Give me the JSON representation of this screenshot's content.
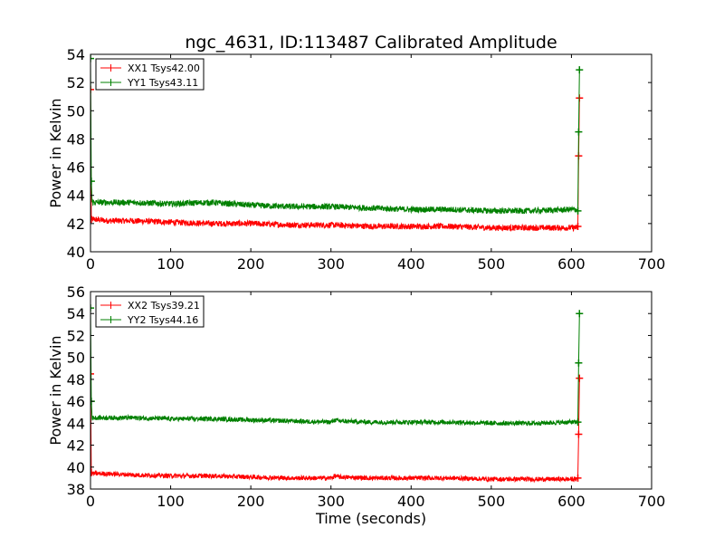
{
  "title": "ngc_4631, ID:113487 Calibrated Amplitude",
  "chart_data": [
    {
      "type": "line",
      "ylabel": "Power in Kelvin",
      "xlabel": "",
      "xlim": [
        0,
        700
      ],
      "ylim": [
        40,
        54
      ],
      "xticks": [
        0,
        100,
        200,
        300,
        400,
        500,
        600,
        700
      ],
      "yticks": [
        40,
        42,
        44,
        46,
        48,
        50,
        52,
        54
      ],
      "grid": false,
      "legend_position": "upper-left",
      "series": [
        {
          "name": "XX1 Tsys42.00",
          "color": "#ff0000",
          "x": [
            0,
            1,
            2,
            5,
            20,
            50,
            100,
            150,
            200,
            250,
            300,
            350,
            400,
            450,
            500,
            550,
            600,
            606,
            608,
            609,
            610
          ],
          "y": [
            51.5,
            42.3,
            42.3,
            42.3,
            42.2,
            42.2,
            42.1,
            42.0,
            42.0,
            41.9,
            41.9,
            41.8,
            41.8,
            41.8,
            41.7,
            41.7,
            41.7,
            41.7,
            41.8,
            46.8,
            50.9
          ]
        },
        {
          "name": "YY1 Tsys43.11",
          "color": "#008000",
          "x": [
            0,
            1,
            2,
            5,
            20,
            50,
            100,
            150,
            200,
            250,
            300,
            350,
            400,
            450,
            500,
            550,
            600,
            606,
            608,
            609,
            610
          ],
          "y": [
            53.7,
            45.0,
            43.5,
            43.5,
            43.5,
            43.5,
            43.4,
            43.5,
            43.3,
            43.2,
            43.2,
            43.1,
            43.0,
            43.0,
            42.9,
            42.9,
            43.0,
            43.0,
            42.9,
            48.5,
            52.9
          ]
        }
      ]
    },
    {
      "type": "line",
      "ylabel": "Power in Kelvin",
      "xlabel": "Time (seconds)",
      "xlim": [
        0,
        700
      ],
      "ylim": [
        38,
        56
      ],
      "xticks": [
        0,
        100,
        200,
        300,
        400,
        500,
        600,
        700
      ],
      "yticks": [
        38,
        40,
        42,
        44,
        46,
        48,
        50,
        52,
        54,
        56
      ],
      "grid": false,
      "legend_position": "upper-left",
      "series": [
        {
          "name": "XX2 Tsys39.21",
          "color": "#ff0000",
          "x": [
            0,
            1,
            2,
            5,
            20,
            50,
            100,
            150,
            200,
            250,
            300,
            305,
            310,
            350,
            400,
            450,
            500,
            550,
            600,
            606,
            608,
            609,
            610
          ],
          "y": [
            48.5,
            39.5,
            39.4,
            39.4,
            39.4,
            39.3,
            39.2,
            39.2,
            39.1,
            39.0,
            39.0,
            39.2,
            39.1,
            39.0,
            39.0,
            39.0,
            38.9,
            38.9,
            38.9,
            38.9,
            39.0,
            43.0,
            48.1
          ]
        },
        {
          "name": "YY2 Tsys44.16",
          "color": "#008000",
          "x": [
            0,
            1,
            2,
            5,
            20,
            50,
            100,
            150,
            200,
            250,
            300,
            305,
            310,
            350,
            400,
            450,
            500,
            550,
            600,
            606,
            608,
            609,
            610
          ],
          "y": [
            54.5,
            46.0,
            44.5,
            44.5,
            44.5,
            44.5,
            44.4,
            44.4,
            44.3,
            44.2,
            44.1,
            44.3,
            44.2,
            44.1,
            44.1,
            44.1,
            44.0,
            44.0,
            44.1,
            44.1,
            44.1,
            49.5,
            54.0
          ]
        }
      ]
    }
  ]
}
